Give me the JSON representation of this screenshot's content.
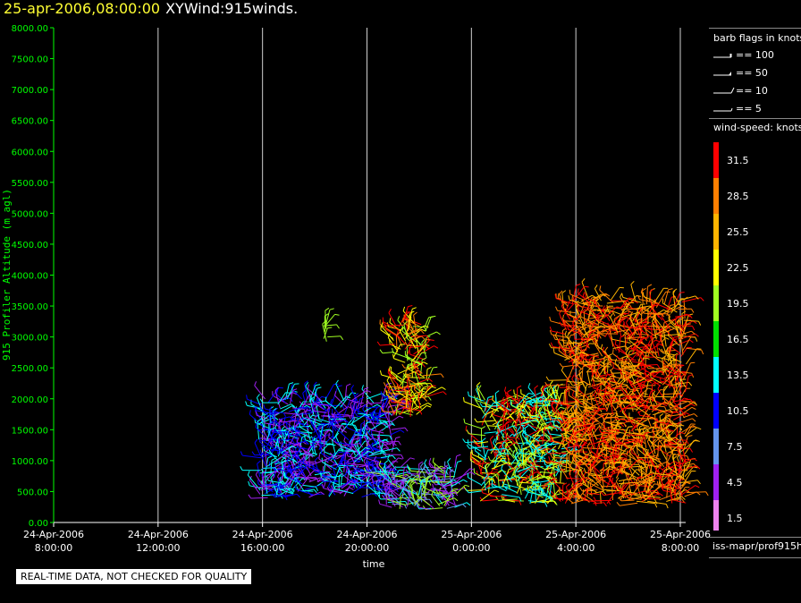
{
  "title": {
    "datetime": "25-apr-2006,08:00:00",
    "product": "XYWind:915winds."
  },
  "legend_flags": {
    "title": "barb flags in knots",
    "items": [
      {
        "label": "== 100"
      },
      {
        "label": "== 50"
      },
      {
        "label": "== 10"
      },
      {
        "label": "== 5"
      }
    ]
  },
  "legend_speed": {
    "title": "wind-speed: knots",
    "bins": [
      {
        "label": "31.5",
        "color": "#ff0000"
      },
      {
        "label": "28.5",
        "color": "#ff7f00"
      },
      {
        "label": "25.5",
        "color": "#ffb400"
      },
      {
        "label": "22.5",
        "color": "#ffff00"
      },
      {
        "label": "19.5",
        "color": "#a0ff20"
      },
      {
        "label": "16.5",
        "color": "#00e000"
      },
      {
        "label": "13.5",
        "color": "#00ffff"
      },
      {
        "label": "10.5",
        "color": "#0000ff"
      },
      {
        "label": "7.5",
        "color": "#6495ed"
      },
      {
        "label": "4.5",
        "color": "#a020f0"
      },
      {
        "label": "1.5",
        "color": "#ee82ee"
      }
    ]
  },
  "source_label": "iss-mapr/prof915h",
  "qc_note": "REAL-TIME DATA, NOT CHECKED FOR QUALITY",
  "chart_data": {
    "type": "scatter",
    "title": "25-apr-2006,08:00:00 XYWind:915winds.",
    "xlabel": "time",
    "ylabel": "915 Profiler Altitude (m agl)",
    "x_ticks": [
      {
        "date": "24-Apr-2006",
        "time": "8:00:00"
      },
      {
        "date": "24-Apr-2006",
        "time": "12:00:00"
      },
      {
        "date": "24-Apr-2006",
        "time": "16:00:00"
      },
      {
        "date": "24-Apr-2006",
        "time": "20:00:00"
      },
      {
        "date": "25-Apr-2006",
        "time": "0:00:00"
      },
      {
        "date": "25-Apr-2006",
        "time": "4:00:00"
      },
      {
        "date": "25-Apr-2006",
        "time": "8:00:00"
      }
    ],
    "y_ticks": [
      "0.00",
      "500.00",
      "1000.00",
      "1500.00",
      "2000.00",
      "2500.00",
      "3000.00",
      "3500.00",
      "4000.00",
      "4500.00",
      "5000.00",
      "5500.00",
      "6000.00",
      "6500.00",
      "7000.00",
      "7500.00",
      "8000.00"
    ],
    "xlim": [
      "2006-04-24 08:00",
      "2006-04-25 08:00"
    ],
    "ylim": [
      0,
      8000
    ],
    "vertical_grid": true,
    "axis_color": "#00ff00",
    "wind_barb_clusters": [
      {
        "x_start": "2006-04-24 15:50",
        "x_end": "2006-04-24 21:00",
        "alt_min": 400,
        "alt_max": 2000,
        "speed_kt": [
          4.5,
          10.5,
          13.5
        ]
      },
      {
        "x_start": "2006-04-24 18:20",
        "x_end": "2006-04-24 18:30",
        "alt_min": 2900,
        "alt_max": 3200,
        "speed_kt": [
          19.5
        ]
      },
      {
        "x_start": "2006-04-24 20:40",
        "x_end": "2006-04-24 23:30",
        "alt_min": 200,
        "alt_max": 900,
        "speed_kt": [
          4.5,
          7.5,
          13.5,
          19.5
        ]
      },
      {
        "x_start": "2006-04-24 21:00",
        "x_end": "2006-04-24 22:20",
        "alt_min": 1700,
        "alt_max": 3250,
        "speed_kt": [
          19.5,
          22.5,
          28.5,
          31.5
        ]
      },
      {
        "x_start": "2006-04-25 00:20",
        "x_end": "2006-04-25 03:30",
        "alt_min": 300,
        "alt_max": 2000,
        "speed_kt": [
          13.5,
          19.5,
          22.5,
          31.5
        ]
      },
      {
        "x_start": "2006-04-25 03:30",
        "x_end": "2006-04-25 08:15",
        "alt_min": 300,
        "alt_max": 3600,
        "speed_kt": [
          25.5,
          28.5,
          31.5
        ]
      }
    ]
  }
}
